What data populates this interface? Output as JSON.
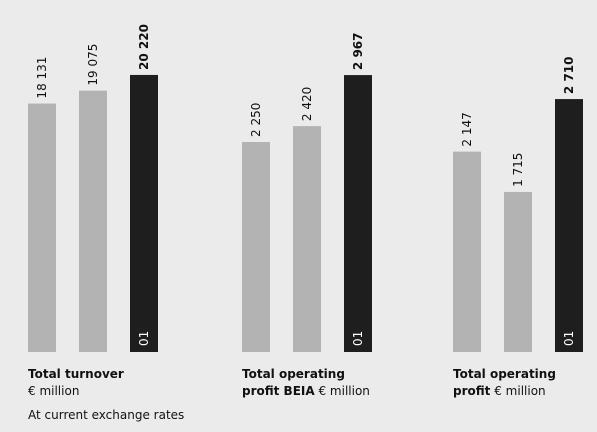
{
  "chart_data": [
    {
      "type": "bar",
      "categories": [
        null,
        null,
        "01"
      ],
      "values": [
        18131,
        19075,
        20220
      ],
      "value_labels": [
        "18 131",
        "19 075",
        "20 220"
      ],
      "colors": [
        "#b3b3b3",
        "#b3b3b3",
        "#1e1e1e"
      ],
      "ylim": [
        0,
        23500
      ],
      "caption": [
        {
          "bold": "Total turnover"
        },
        {
          "text": "€ million"
        }
      ]
    },
    {
      "type": "bar",
      "categories": [
        null,
        null,
        "01"
      ],
      "values": [
        2250,
        2420,
        2967
      ],
      "value_labels": [
        "2 250",
        "2 420",
        "2 967"
      ],
      "colors": [
        "#b3b3b3",
        "#b3b3b3",
        "#1e1e1e"
      ],
      "ylim": [
        0,
        3450
      ],
      "caption": [
        {
          "bold": "Total operating"
        },
        {
          "bold": "profit BEIA",
          "text": "€ million"
        }
      ]
    },
    {
      "type": "bar",
      "categories": [
        null,
        null,
        "01"
      ],
      "values": [
        2147,
        1715,
        2710
      ],
      "value_labels": [
        "2 147",
        "1 715",
        "2 710"
      ],
      "colors": [
        "#b3b3b3",
        "#b3b3b3",
        "#1e1e1e"
      ],
      "ylim": [
        0,
        3450
      ],
      "caption": [
        {
          "bold": "Total operating"
        },
        {
          "bold": "profit",
          "text": "€ million"
        }
      ]
    }
  ],
  "note": "At current exchange rates"
}
